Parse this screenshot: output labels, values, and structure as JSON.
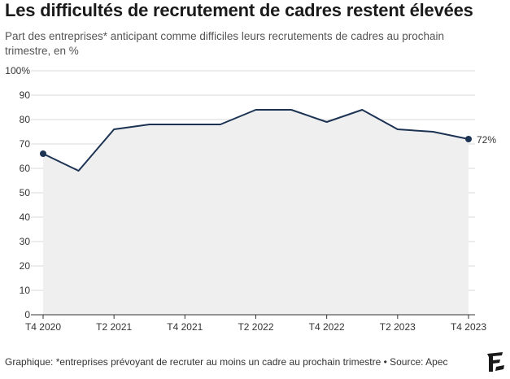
{
  "header": {
    "title": "Les difficultés de recrutement de cadres restent élevées",
    "subtitle": "Part des entreprises* anticipant comme difficiles leurs recrutements de cadres au prochain trimestre, en %"
  },
  "footer": {
    "note": "Graphique: *entreprises prévoyant de recruter au moins un cadre au prochain trimestre • Source: Apec"
  },
  "logo": {
    "icon": "le-figaro-logo-icon",
    "text": "F"
  },
  "colors": {
    "line": "#1c3354",
    "area": "#efefef",
    "grid": "#d9d9d9",
    "axis": "#333333"
  },
  "chart_data": {
    "type": "area",
    "title": "Les difficultés de recrutement de cadres restent élevées",
    "subtitle": "Part des entreprises* anticipant comme difficiles leurs recrutements de cadres au prochain trimestre, en %",
    "x": [
      "T4 2020",
      "T1 2021",
      "T2 2021",
      "T3 2021",
      "T4 2021",
      "T1 2022",
      "T2 2022",
      "T3 2022",
      "T4 2022",
      "T1 2023",
      "T2 2023",
      "T3 2023",
      "T4 2023"
    ],
    "series": [
      {
        "values": [
          66,
          59,
          76,
          78,
          78,
          78,
          84,
          84,
          79,
          84,
          76,
          75,
          72
        ]
      }
    ],
    "x_tick_labels": [
      "T4 2020",
      "T2 2021",
      "T4 2021",
      "T2 2022",
      "T4 2022",
      "T2 2023",
      "T4 2023"
    ],
    "y_tick_labels": [
      "0",
      "10",
      "20",
      "30",
      "40",
      "50",
      "60",
      "70",
      "80",
      "90",
      "100%"
    ],
    "ylim": [
      0,
      100
    ],
    "grid": "horizontal",
    "end_label": "72%",
    "xlabel": "",
    "ylabel": ""
  }
}
